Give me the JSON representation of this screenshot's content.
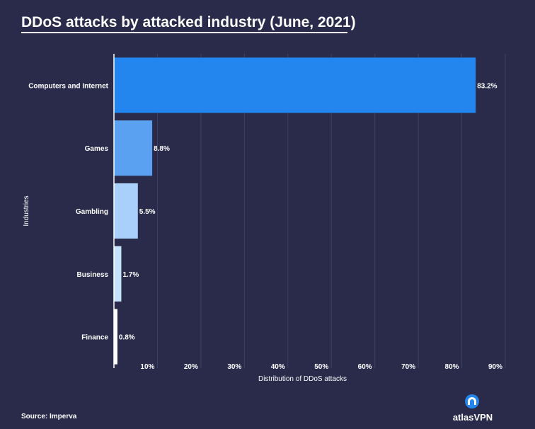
{
  "title": "DDoS attacks by attacked industry (June, 2021)",
  "source": "Source: Imperva",
  "brand": "atlasVPN",
  "colors": {
    "background": "#2a2b4a",
    "grid": "#3f4062",
    "axis": "#ffffff",
    "text": "#ffffff"
  },
  "chart_data": {
    "type": "bar",
    "orientation": "horizontal",
    "title": "DDoS attacks by attacked industry (June, 2021)",
    "xlabel": "Distribution of DDoS attacks",
    "ylabel": "Industries",
    "xlim": [
      0,
      90
    ],
    "xticks": [
      10,
      20,
      30,
      40,
      50,
      60,
      70,
      80,
      90
    ],
    "xtick_labels": [
      "10%",
      "20%",
      "30%",
      "40%",
      "50%",
      "60%",
      "70%",
      "80%",
      "90%"
    ],
    "grid": true,
    "categories": [
      "Computers and Internet",
      "Games",
      "Gambling",
      "Business",
      "Finance"
    ],
    "values": [
      83.2,
      8.8,
      5.5,
      1.7,
      0.8
    ],
    "value_labels": [
      "83.2%",
      "8.8%",
      "5.5%",
      "1.7%",
      "0.8%"
    ],
    "bar_colors": [
      "#2385ee",
      "#5aa2f1",
      "#a8d0fb",
      "#c6e3fc",
      "#ffffff"
    ]
  }
}
